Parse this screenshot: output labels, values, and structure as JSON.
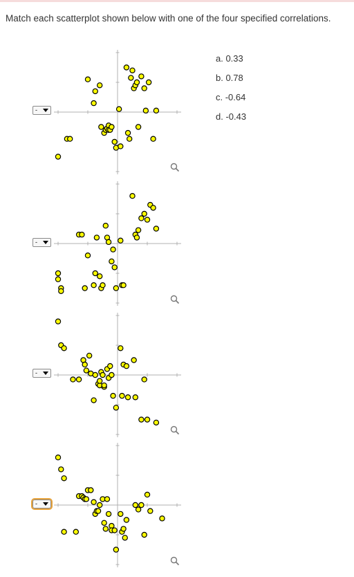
{
  "prompt": "Match each scatterplot shown below with one of the four specified correlations.",
  "options": [
    "a. 0.33",
    "b. 0.78",
    "c. -0.64",
    "d. -0.43"
  ],
  "select_value": "-",
  "icons": {
    "dropdown": "chevron-down-icon",
    "zoom": "magnifier-icon"
  },
  "colors": {
    "point_fill": "#ffff00",
    "point_stroke": "#000000",
    "axis": "#b0b0b0"
  },
  "chart_data": [
    {
      "type": "scatter",
      "x": [
        -2.0,
        -1.7,
        -1.6,
        -1.0,
        -0.8,
        -0.75,
        -0.6,
        -0.55,
        -0.45,
        -0.4,
        -0.35,
        -0.3,
        -0.3,
        -0.25,
        -0.2,
        -0.1,
        -0.05,
        0.05,
        0.1,
        0.3,
        0.35,
        0.4,
        0.45,
        0.5,
        0.55,
        0.6,
        0.65,
        0.7,
        0.8,
        0.9,
        0.95,
        1.05,
        1.2,
        1.3
      ],
      "y": [
        -1.5,
        -0.9,
        -0.9,
        1.1,
        0.3,
        0.7,
        0.9,
        -0.5,
        -0.7,
        -0.6,
        -0.55,
        -0.45,
        -0.6,
        -0.6,
        -0.5,
        -1.0,
        -1.2,
        0.1,
        -1.15,
        1.5,
        -0.7,
        -0.9,
        1.15,
        1.4,
        0.8,
        0.9,
        1.0,
        -0.5,
        1.2,
        0.8,
        0.05,
        1.0,
        -0.9,
        0.05
      ],
      "xlim": [
        -2.3,
        2.3
      ],
      "ylim": [
        -2.0,
        2.0
      ],
      "grid": false
    },
    {
      "type": "scatter",
      "x": [
        -2.0,
        -2.0,
        -1.9,
        -1.9,
        -1.3,
        -1.2,
        -1.1,
        -1.0,
        -0.8,
        -0.75,
        -0.7,
        -0.6,
        -0.55,
        -0.5,
        -0.4,
        -0.35,
        -0.3,
        -0.2,
        -0.15,
        -0.1,
        -0.05,
        0.1,
        0.15,
        0.2,
        0.5,
        0.6,
        0.65,
        0.7,
        0.8,
        0.9,
        1.0,
        1.1,
        1.2,
        1.3
      ],
      "y": [
        -1.0,
        -1.2,
        -1.5,
        -1.6,
        0.3,
        0.3,
        -1.5,
        -0.4,
        -1.4,
        -1.0,
        0.2,
        -1.1,
        -1.5,
        -1.4,
        0.6,
        0.2,
        0.05,
        -0.6,
        -0.2,
        -0.8,
        -1.5,
        0.1,
        -1.4,
        -1.4,
        1.6,
        0.3,
        0.2,
        0.45,
        0.85,
        1.0,
        0.8,
        1.3,
        1.2,
        0.5
      ],
      "xlim": [
        -2.3,
        2.3
      ],
      "ylim": [
        -2.0,
        2.0
      ],
      "grid": false
    },
    {
      "type": "scatter",
      "x": [
        -2.0,
        -1.9,
        -1.8,
        -1.5,
        -1.3,
        -1.15,
        -1.1,
        -1.05,
        -0.95,
        -0.9,
        -0.8,
        -0.75,
        -0.65,
        -0.6,
        -0.6,
        -0.55,
        -0.5,
        -0.45,
        -0.45,
        -0.35,
        -0.3,
        -0.25,
        -0.2,
        -0.15,
        -0.05,
        0.1,
        0.15,
        0.2,
        0.3,
        0.35,
        0.55,
        0.6,
        0.8,
        0.9,
        1.0,
        1.3
      ],
      "y": [
        1.8,
        1.0,
        0.9,
        -0.15,
        -0.15,
        0.5,
        0.35,
        0.15,
        0.65,
        0.05,
        -0.85,
        0.0,
        -0.3,
        -0.35,
        -0.2,
        0.1,
        0.0,
        -0.4,
        -0.35,
        0.2,
        -0.1,
        0.3,
        0.0,
        -0.7,
        -1.1,
        0.9,
        -0.7,
        0.35,
        0.3,
        -0.75,
        0.5,
        -0.75,
        -1.5,
        -0.15,
        -1.5,
        -1.6
      ],
      "xlim": [
        -2.3,
        2.3
      ],
      "ylim": [
        -2.0,
        2.0
      ],
      "grid": false
    },
    {
      "type": "scatter",
      "x": [
        -2.0,
        -1.9,
        -1.8,
        -1.8,
        -1.4,
        -1.3,
        -1.2,
        -1.15,
        -1.1,
        -1.05,
        -1.0,
        -0.9,
        -0.8,
        -0.75,
        -0.7,
        -0.65,
        -0.6,
        -0.5,
        -0.45,
        -0.4,
        -0.35,
        -0.3,
        -0.2,
        -0.2,
        -0.1,
        -0.05,
        0.1,
        0.15,
        0.2,
        0.25,
        0.3,
        0.6,
        0.7,
        0.8,
        0.9,
        1.0,
        1.1,
        1.5
      ],
      "y": [
        1.6,
        1.2,
        0.9,
        -0.9,
        -0.9,
        0.3,
        0.3,
        0.25,
        0.2,
        0.2,
        0.5,
        0.5,
        0.1,
        -0.3,
        -0.2,
        -0.2,
        0.0,
        0.2,
        -0.6,
        -0.8,
        0.2,
        -0.3,
        -0.7,
        -0.85,
        -0.85,
        -1.5,
        -0.3,
        -0.9,
        -0.8,
        -1.1,
        -0.5,
        0.0,
        -0.15,
        0.0,
        -1.0,
        0.35,
        -0.2,
        -0.45
      ],
      "xlim": [
        -2.3,
        2.3
      ],
      "ylim": [
        -2.0,
        2.0
      ],
      "grid": false
    }
  ]
}
